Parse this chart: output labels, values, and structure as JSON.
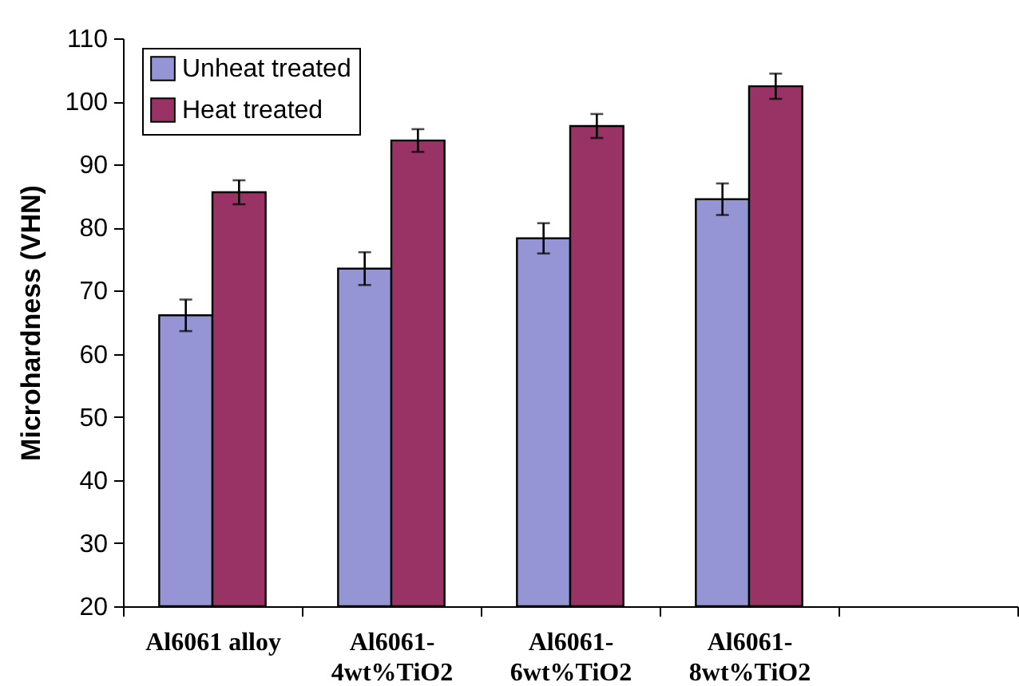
{
  "chart_data": {
    "type": "bar",
    "ylabel": "Microhardness (VHN)",
    "categories": [
      "Al6061 alloy",
      "Al6061-4wt%TiO2",
      "Al6061-6wt%TiO2",
      "Al6061-8wt%TiO2",
      null
    ],
    "series": [
      {
        "name": "Unheat treated",
        "color": "#9595d6",
        "values": [
          66.1,
          73.5,
          78.3,
          84.5,
          null
        ],
        "errors": [
          2.5,
          2.6,
          2.4,
          2.5,
          null
        ]
      },
      {
        "name": "Heat treated",
        "color": "#993366",
        "values": [
          85.6,
          93.8,
          96.1,
          102.4,
          null
        ],
        "errors": [
          1.9,
          1.8,
          1.9,
          2.0,
          null
        ]
      }
    ],
    "ylim": [
      20,
      110
    ],
    "yticks": [
      20,
      30,
      40,
      50,
      60,
      70,
      80,
      90,
      100,
      110
    ],
    "grid": false,
    "legend": "top left"
  }
}
